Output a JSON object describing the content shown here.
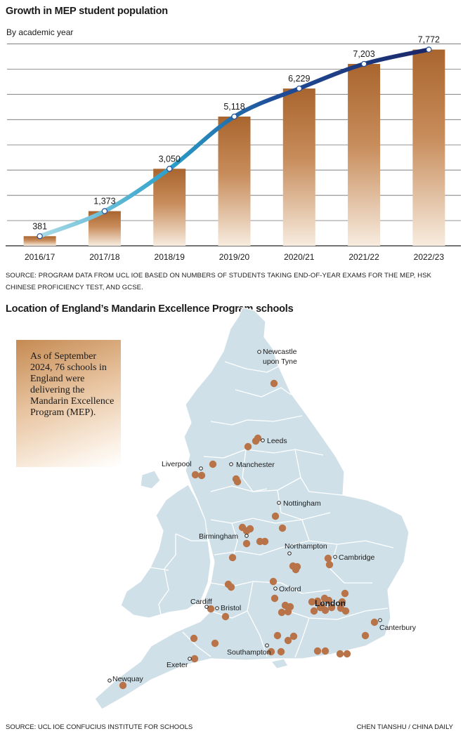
{
  "chart_data": {
    "type": "bar",
    "title": "Growth in MEP student population",
    "subtitle": "By academic year",
    "categories": [
      "2016/17",
      "2017/18",
      "2018/19",
      "2019/20",
      "2020/21",
      "2021/22",
      "2022/23"
    ],
    "values": [
      381,
      1373,
      3050,
      5118,
      6229,
      7203,
      7772
    ],
    "value_labels": [
      "381",
      "1,373",
      "3,050",
      "5,118",
      "6,229",
      "7,203",
      "7,772"
    ],
    "ylim": [
      0,
      8400
    ],
    "grid": true,
    "overlay": "line through bar tops with gradient from light cyan to dark navy",
    "bar_color": "#a9652e",
    "line_colors": [
      "#a8dce8",
      "#2a9cc8",
      "#1e3a8a",
      "#1b2566"
    ],
    "source": "SOURCE: PROGRAM DATA FROM UCL IOE BASED ON NUMBERS OF STUDENTS TAKING END-OF-YEAR EXAMS FOR THE MEP, HSK CHINESE PROFICIENCY TEST, AND GCSE."
  },
  "map": {
    "title": "Location of England’s Mandarin Excellence Program schools",
    "callout": "As of September 2024, 76 schools in England were delivering the Mandarin Excellence Program (MEP).",
    "cities": {
      "newcastle": "Newcastle upon Tyne",
      "leeds": "Leeds",
      "liverpool": "Liverpool",
      "manchester": "Manchester",
      "nottingham": "Nottingham",
      "birmingham": "Birmingham",
      "northampton": "Northampton",
      "cambridge": "Cambridge",
      "oxford": "Oxford",
      "london": "London",
      "cardiff": "Cardiff",
      "bristol": "Bristol",
      "canterbury": "Canterbury",
      "southampton": "Southampton",
      "exeter": "Exeter",
      "newquay": "Newquay"
    },
    "land_color": "#cfe0e8",
    "school_color": "#b87448",
    "source": "SOURCE: UCL IOE CONFUCIUS INSTITUTE FOR SCHOOLS",
    "credit": "CHEN TIANSHU / CHINA DAILY"
  }
}
